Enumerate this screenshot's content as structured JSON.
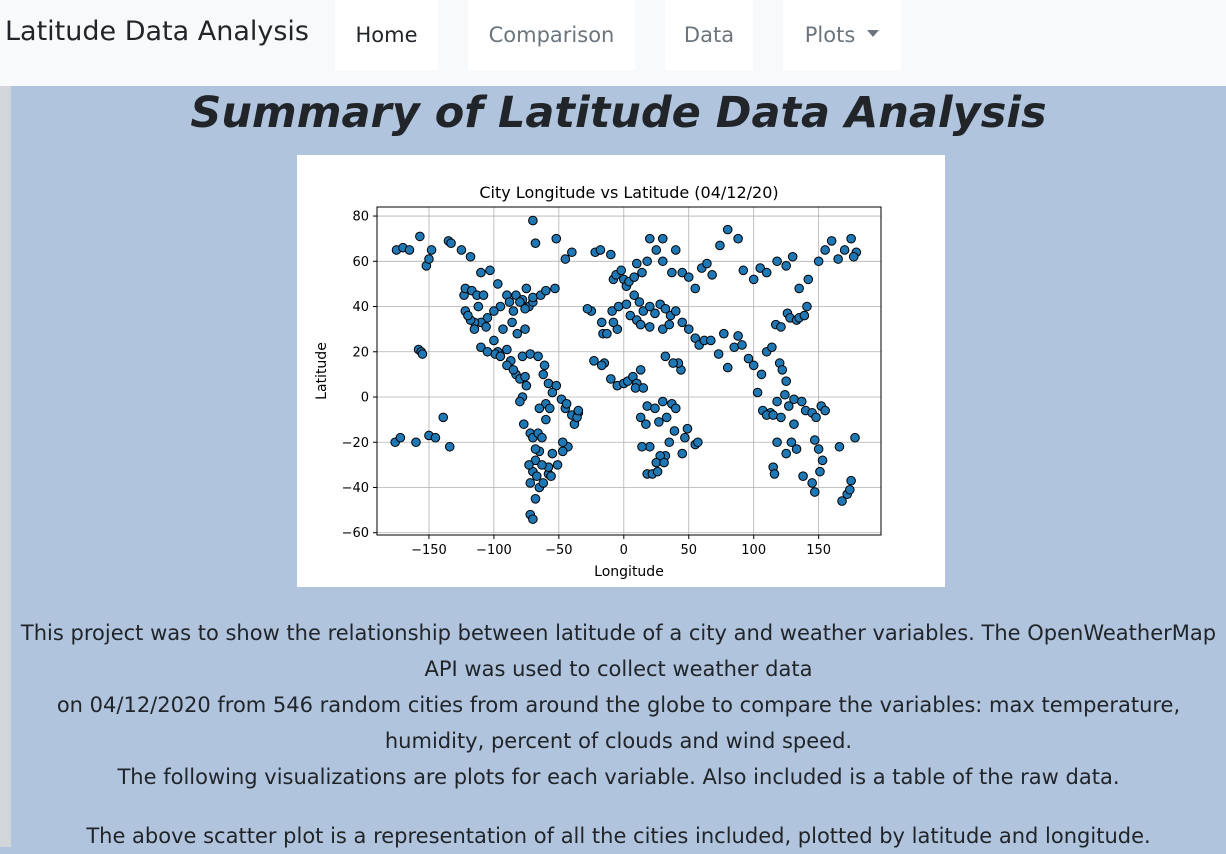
{
  "nav": {
    "brand": "Latitude Data Analysis",
    "items": [
      {
        "label": "Home"
      },
      {
        "label": "Comparison"
      },
      {
        "label": "Data"
      },
      {
        "label": "Plots"
      }
    ]
  },
  "page": {
    "title": "Summary of Latitude Data Analysis",
    "paragraph_1_line_1": "This project was to show the relationship between latitude of a city and weather variables. The OpenWeatherMap API was used to collect weather data",
    "paragraph_1_line_2": "on 04/12/2020 from 546 random cities from around the globe to compare the variables: max temperature, humidity, percent of clouds and wind speed.",
    "paragraph_1_line_3": "The following visualizations are plots for each variable. Also included is a table of the raw data.",
    "paragraph_2": "The above scatter plot is a representation of all the cities included, plotted by latitude and longitude."
  },
  "colors": {
    "page_background": "#b0c4de",
    "navbar_background": "#f8f9fa",
    "marker_fill": "#1f77b4",
    "marker_edge": "#000000"
  },
  "chart_data": {
    "type": "scatter",
    "title": "City Longitude vs Latitude (04/12/20)",
    "xlabel": "Longitude",
    "ylabel": "Latitude",
    "xlim": [
      -190,
      198
    ],
    "ylim": [
      -61,
      84
    ],
    "xticks": [
      -150,
      -100,
      -50,
      0,
      50,
      100,
      150
    ],
    "xtick_labels": [
      "−150",
      "−100",
      "−50",
      "0",
      "50",
      "100",
      "150"
    ],
    "yticks": [
      80,
      60,
      40,
      20,
      0,
      -20,
      -40,
      -60
    ],
    "ytick_labels": [
      "80",
      "60",
      "40",
      "20",
      "0",
      "−20",
      "−40",
      "−60"
    ],
    "grid": true,
    "points": [
      [
        -175,
        65
      ],
      [
        -170,
        66
      ],
      [
        -165,
        65
      ],
      [
        -157,
        71
      ],
      [
        -152,
        58
      ],
      [
        -150,
        61
      ],
      [
        -148,
        65
      ],
      [
        -135,
        69
      ],
      [
        -133,
        68
      ],
      [
        -125,
        65
      ],
      [
        -118,
        62
      ],
      [
        -110,
        55
      ],
      [
        -103,
        56
      ],
      [
        -97,
        50
      ],
      [
        -90,
        45
      ],
      [
        -83,
        45
      ],
      [
        -78,
        43
      ],
      [
        -73,
        40
      ],
      [
        -70,
        42
      ],
      [
        -75,
        48
      ],
      [
        -80,
        42
      ],
      [
        -88,
        42
      ],
      [
        -95,
        40
      ],
      [
        -100,
        38
      ],
      [
        -105,
        35
      ],
      [
        -110,
        33
      ],
      [
        -115,
        33
      ],
      [
        -118,
        34
      ],
      [
        -122,
        38
      ],
      [
        -123,
        45
      ],
      [
        -122,
        48
      ],
      [
        -117,
        47
      ],
      [
        -112,
        40
      ],
      [
        -106,
        31
      ],
      [
        -100,
        25
      ],
      [
        -97,
        20
      ],
      [
        -99,
        19
      ],
      [
        -90,
        21
      ],
      [
        -87,
        16
      ],
      [
        -83,
        10
      ],
      [
        -80,
        8
      ],
      [
        -76,
        9
      ],
      [
        -75,
        5
      ],
      [
        -78,
        0
      ],
      [
        -80,
        -2
      ],
      [
        -77,
        -12
      ],
      [
        -72,
        -16
      ],
      [
        -70,
        -18
      ],
      [
        -66,
        -16
      ],
      [
        -60,
        -3
      ],
      [
        -57,
        -5
      ],
      [
        -48,
        -1
      ],
      [
        -45,
        -5
      ],
      [
        -40,
        -8
      ],
      [
        -38,
        -12
      ],
      [
        -35,
        -7
      ],
      [
        -43,
        -22
      ],
      [
        -47,
        -24
      ],
      [
        -51,
        -30
      ],
      [
        -58,
        -34
      ],
      [
        -65,
        -24
      ],
      [
        -68,
        -23
      ],
      [
        -70,
        -33
      ],
      [
        -72,
        -38
      ],
      [
        -68,
        -45
      ],
      [
        -72,
        -52
      ],
      [
        -70,
        -54
      ],
      [
        -65,
        -40
      ],
      [
        -62,
        -38
      ],
      [
        -56,
        -35
      ],
      [
        -58,
        -31
      ],
      [
        -55,
        -25
      ],
      [
        -158,
        21
      ],
      [
        -156,
        20
      ],
      [
        -155,
        19
      ],
      [
        -176,
        -20
      ],
      [
        -172,
        -18
      ],
      [
        -160,
        -20
      ],
      [
        -150,
        -17
      ],
      [
        -139,
        -9
      ],
      [
        -134,
        -22
      ],
      [
        -145,
        -18
      ],
      [
        -115,
        30
      ],
      [
        -120,
        36
      ],
      [
        -113,
        45
      ],
      [
        -108,
        45
      ],
      [
        -93,
        30
      ],
      [
        -86,
        33
      ],
      [
        -82,
        28
      ],
      [
        -85,
        38
      ],
      [
        -76,
        39
      ],
      [
        -70,
        44
      ],
      [
        -64,
        45
      ],
      [
        -60,
        47
      ],
      [
        -53,
        48
      ],
      [
        -68,
        68
      ],
      [
        -70,
        78
      ],
      [
        -52,
        70
      ],
      [
        -45,
        61
      ],
      [
        -40,
        64
      ],
      [
        -22,
        64
      ],
      [
        -18,
        65
      ],
      [
        -10,
        63
      ],
      [
        -8,
        52
      ],
      [
        -6,
        54
      ],
      [
        -2,
        56
      ],
      [
        0,
        52
      ],
      [
        2,
        49
      ],
      [
        4,
        51
      ],
      [
        8,
        53
      ],
      [
        10,
        59
      ],
      [
        14,
        55
      ],
      [
        18,
        60
      ],
      [
        20,
        70
      ],
      [
        25,
        65
      ],
      [
        30,
        60
      ],
      [
        30,
        70
      ],
      [
        37,
        55
      ],
      [
        40,
        65
      ],
      [
        45,
        55
      ],
      [
        50,
        53
      ],
      [
        55,
        48
      ],
      [
        60,
        57
      ],
      [
        64,
        59
      ],
      [
        68,
        54
      ],
      [
        74,
        67
      ],
      [
        80,
        74
      ],
      [
        88,
        70
      ],
      [
        92,
        56
      ],
      [
        100,
        52
      ],
      [
        105,
        57
      ],
      [
        110,
        55
      ],
      [
        118,
        60
      ],
      [
        125,
        58
      ],
      [
        130,
        62
      ],
      [
        135,
        48
      ],
      [
        142,
        52
      ],
      [
        150,
        60
      ],
      [
        155,
        65
      ],
      [
        160,
        69
      ],
      [
        165,
        61
      ],
      [
        170,
        65
      ],
      [
        175,
        70
      ],
      [
        179,
        64
      ],
      [
        177,
        62
      ],
      [
        -9,
        38
      ],
      [
        -4,
        40
      ],
      [
        2,
        41
      ],
      [
        8,
        45
      ],
      [
        12,
        42
      ],
      [
        15,
        38
      ],
      [
        20,
        40
      ],
      [
        24,
        37
      ],
      [
        28,
        41
      ],
      [
        32,
        39
      ],
      [
        36,
        36
      ],
      [
        40,
        38
      ],
      [
        45,
        33
      ],
      [
        50,
        30
      ],
      [
        55,
        26
      ],
      [
        58,
        23
      ],
      [
        62,
        25
      ],
      [
        67,
        25
      ],
      [
        73,
        19
      ],
      [
        77,
        28
      ],
      [
        80,
        13
      ],
      [
        85,
        22
      ],
      [
        88,
        27
      ],
      [
        91,
        23
      ],
      [
        96,
        17
      ],
      [
        100,
        14
      ],
      [
        103,
        2
      ],
      [
        106,
        10
      ],
      [
        110,
        20
      ],
      [
        114,
        22
      ],
      [
        117,
        32
      ],
      [
        121,
        31
      ],
      [
        126,
        37
      ],
      [
        128,
        35
      ],
      [
        133,
        34
      ],
      [
        135,
        35
      ],
      [
        139,
        36
      ],
      [
        141,
        40
      ],
      [
        120,
        15
      ],
      [
        122,
        12
      ],
      [
        125,
        7
      ],
      [
        124,
        1
      ],
      [
        118,
        -2
      ],
      [
        113,
        -7
      ],
      [
        107,
        -6
      ],
      [
        110,
        -8
      ],
      [
        115,
        -8
      ],
      [
        121,
        -9
      ],
      [
        127,
        -4
      ],
      [
        131,
        -1
      ],
      [
        137,
        -2
      ],
      [
        140,
        -6
      ],
      [
        145,
        -7
      ],
      [
        148,
        -9
      ],
      [
        152,
        -4
      ],
      [
        155,
        -6
      ],
      [
        147,
        -19
      ],
      [
        150,
        -23
      ],
      [
        153,
        -28
      ],
      [
        151,
        -33
      ],
      [
        145,
        -38
      ],
      [
        147,
        -42
      ],
      [
        138,
        -35
      ],
      [
        131,
        -12
      ],
      [
        129,
        -20
      ],
      [
        125,
        -25
      ],
      [
        118,
        -20
      ],
      [
        115,
        -31
      ],
      [
        116,
        -34
      ],
      [
        133,
        -23
      ],
      [
        172,
        -43
      ],
      [
        175,
        -37
      ],
      [
        174,
        -41
      ],
      [
        168,
        -46
      ],
      [
        166,
        -22
      ],
      [
        178,
        -18
      ],
      [
        -15,
        15
      ],
      [
        -17,
        14
      ],
      [
        -10,
        8
      ],
      [
        -5,
        5
      ],
      [
        0,
        6
      ],
      [
        3,
        7
      ],
      [
        7,
        9
      ],
      [
        10,
        6
      ],
      [
        13,
        12
      ],
      [
        9,
        4
      ],
      [
        15,
        4
      ],
      [
        18,
        -4
      ],
      [
        24,
        -5
      ],
      [
        27,
        -11
      ],
      [
        30,
        -2
      ],
      [
        33,
        -9
      ],
      [
        37,
        -3
      ],
      [
        40,
        -5
      ],
      [
        39,
        -15
      ],
      [
        35,
        -20
      ],
      [
        32,
        -26
      ],
      [
        28,
        -26
      ],
      [
        25,
        -29
      ],
      [
        18,
        -34
      ],
      [
        22,
        -34
      ],
      [
        26,
        -33
      ],
      [
        31,
        -29
      ],
      [
        20,
        -22
      ],
      [
        14,
        -22
      ],
      [
        17,
        -12
      ],
      [
        13,
        -9
      ],
      [
        45,
        -25
      ],
      [
        47,
        -18
      ],
      [
        49,
        -14
      ],
      [
        55,
        -21
      ],
      [
        57,
        -20
      ],
      [
        44,
        12
      ],
      [
        42,
        15
      ],
      [
        38,
        15
      ],
      [
        32,
        18
      ],
      [
        -5,
        30
      ],
      [
        -8,
        33
      ],
      [
        5,
        36
      ],
      [
        10,
        34
      ],
      [
        13,
        32
      ],
      [
        20,
        31
      ],
      [
        30,
        30
      ],
      [
        35,
        32
      ],
      [
        -25,
        38
      ],
      [
        -28,
        39
      ],
      [
        -16,
        28
      ],
      [
        -13,
        28
      ],
      [
        -17,
        33
      ],
      [
        -23,
        16
      ],
      [
        -110,
        22
      ],
      [
        -105,
        20
      ],
      [
        -95,
        18
      ],
      [
        -90,
        14
      ],
      [
        -85,
        12
      ],
      [
        -78,
        18
      ],
      [
        -72,
        19
      ],
      [
        -66,
        18
      ],
      [
        -61,
        14
      ],
      [
        -62,
        10
      ],
      [
        -58,
        6
      ],
      [
        -52,
        5
      ],
      [
        -55,
        2
      ],
      [
        -44,
        -3
      ],
      [
        -36,
        -9
      ],
      [
        -35,
        -6
      ],
      [
        -47,
        -20
      ],
      [
        -76,
        30
      ],
      [
        -65,
        -5
      ],
      [
        -60,
        -10
      ],
      [
        -63,
        -18
      ],
      [
        -68,
        -28
      ],
      [
        -73,
        -30
      ],
      [
        -67,
        -35
      ],
      [
        -63,
        -30
      ]
    ]
  }
}
